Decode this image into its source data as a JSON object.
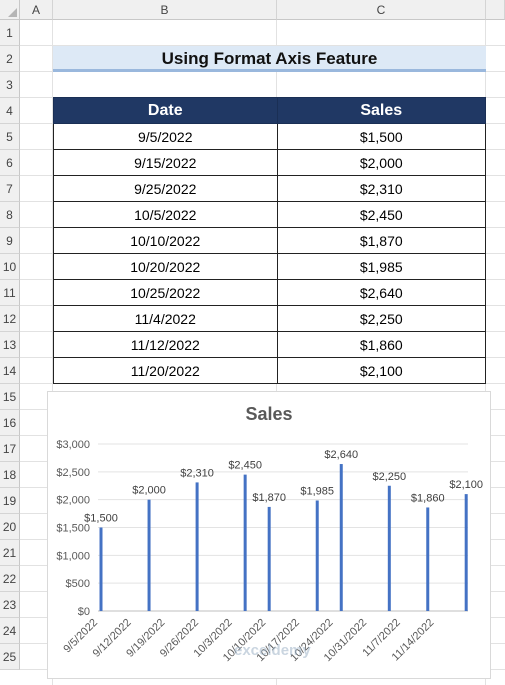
{
  "columns": [
    "A",
    "B",
    "C"
  ],
  "rows": [
    "1",
    "2",
    "3",
    "4",
    "5",
    "6",
    "7",
    "8",
    "9",
    "10",
    "11",
    "12",
    "13",
    "14",
    "15",
    "16",
    "17",
    "18",
    "19",
    "20",
    "21",
    "22",
    "23",
    "24",
    "25"
  ],
  "title": "Using Format Axis Feature",
  "table": {
    "headers": [
      "Date",
      "Sales"
    ],
    "rows": [
      [
        "9/5/2022",
        "$1,500"
      ],
      [
        "9/15/2022",
        "$2,000"
      ],
      [
        "9/25/2022",
        "$2,310"
      ],
      [
        "10/5/2022",
        "$2,450"
      ],
      [
        "10/10/2022",
        "$1,870"
      ],
      [
        "10/20/2022",
        "$1,985"
      ],
      [
        "10/25/2022",
        "$2,640"
      ],
      [
        "11/4/2022",
        "$2,250"
      ],
      [
        "11/12/2022",
        "$1,860"
      ],
      [
        "11/20/2022",
        "$2,100"
      ]
    ]
  },
  "watermark": "exceldemy",
  "chart_data": {
    "type": "bar",
    "title": "Sales",
    "xlabel": "",
    "ylabel": "",
    "x": [
      "2022-09-05",
      "2022-09-15",
      "2022-09-25",
      "2022-10-05",
      "2022-10-10",
      "2022-10-20",
      "2022-10-25",
      "2022-11-04",
      "2022-11-12",
      "2022-11-20"
    ],
    "values": [
      1500,
      2000,
      2310,
      2450,
      1870,
      1985,
      2640,
      2250,
      1860,
      2100
    ],
    "data_labels": [
      "$1,500",
      "$2,000",
      "$2,310",
      "$2,450",
      "$1,870",
      "$1,985",
      "$2,640",
      "$2,250",
      "$1,860",
      "$2,100"
    ],
    "ylim": [
      0,
      3000
    ],
    "yticks": [
      0,
      500,
      1000,
      1500,
      2000,
      2500,
      3000
    ],
    "ytick_labels": [
      "$0",
      "$500",
      "$1,000",
      "$1,500",
      "$2,000",
      "$2,500",
      "$3,000"
    ],
    "xticks": [
      "2022-09-05",
      "2022-09-12",
      "2022-09-19",
      "2022-09-26",
      "2022-10-03",
      "2022-10-10",
      "2022-10-17",
      "2022-10-24",
      "2022-10-31",
      "2022-11-07",
      "2022-11-14"
    ],
    "xtick_labels": [
      "9/5/2022",
      "9/12/2022",
      "9/19/2022",
      "9/26/2022",
      "10/3/2022",
      "10/10/2022",
      "10/17/2022",
      "10/24/2022",
      "10/31/2022",
      "11/7/2022",
      "11/14/2022"
    ],
    "xlim": [
      "2022-09-05",
      "2022-11-21"
    ],
    "grid": true,
    "legend": "none",
    "bar_color": "#4472c4"
  }
}
